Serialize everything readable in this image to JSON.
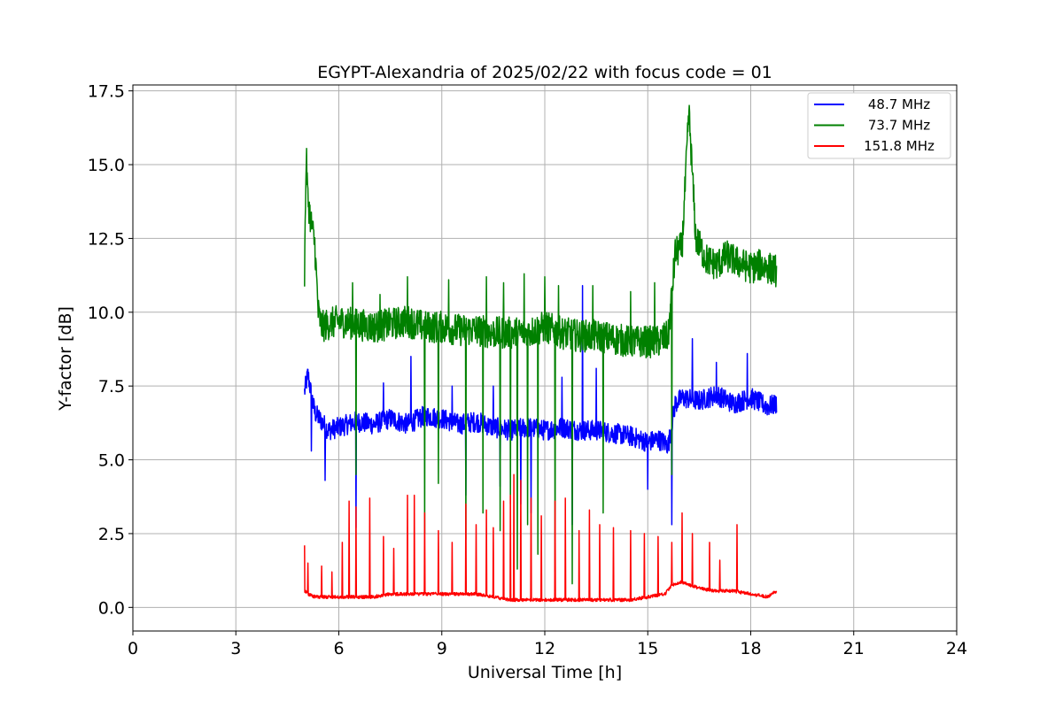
{
  "chart_data": {
    "type": "line",
    "title": "EGYPT-Alexandria of 2025/02/22 with focus code = 01",
    "xlabel": "Universal Time [h]",
    "ylabel": "Y-factor [dB]",
    "xlim": [
      0,
      24
    ],
    "ylim": [
      -0.8,
      17.7
    ],
    "xticks": [
      0,
      3,
      6,
      9,
      12,
      15,
      18,
      21,
      24
    ],
    "xtick_labels": [
      "0",
      "3",
      "6",
      "9",
      "12",
      "15",
      "18",
      "21",
      "24"
    ],
    "yticks": [
      0,
      2.5,
      5,
      7.5,
      10,
      12.5,
      15,
      17.5
    ],
    "ytick_labels": [
      "0.0",
      "2.5",
      "5.0",
      "7.5",
      "10.0",
      "12.5",
      "15.0",
      "17.5"
    ],
    "grid": true,
    "legend_position": "top-right",
    "series": [
      {
        "name": "48.7 MHz",
        "color": "#0000ff",
        "x": [
          5.0,
          5.1,
          5.2,
          5.3,
          5.5,
          5.7,
          6.0,
          6.5,
          7.0,
          7.5,
          8.0,
          8.5,
          9.0,
          9.5,
          10.0,
          10.5,
          11.0,
          11.5,
          12.0,
          12.5,
          13.0,
          13.5,
          14.0,
          14.5,
          15.0,
          15.3,
          15.6,
          15.8,
          16.0,
          16.5,
          17.0,
          17.5,
          18.0,
          18.5,
          18.75
        ],
        "values": [
          7.3,
          7.9,
          7.2,
          6.6,
          6.3,
          6.0,
          6.1,
          6.3,
          6.2,
          6.4,
          6.2,
          6.5,
          6.4,
          6.2,
          6.3,
          6.1,
          6.0,
          6.1,
          6.0,
          6.1,
          6.0,
          6.0,
          5.9,
          5.8,
          5.6,
          5.7,
          5.5,
          6.9,
          7.1,
          7.0,
          7.2,
          6.9,
          7.1,
          6.8,
          6.9
        ],
        "spikes_down": [
          [
            5.2,
            5.3
          ],
          [
            5.6,
            4.3
          ],
          [
            6.5,
            2.7
          ],
          [
            9.7,
            3.8
          ],
          [
            10.7,
            4.1
          ],
          [
            11.3,
            3.5
          ],
          [
            11.6,
            3.2
          ],
          [
            12.8,
            2.8
          ],
          [
            13.5,
            4.8
          ],
          [
            15.0,
            4.0
          ],
          [
            15.7,
            2.8
          ]
        ],
        "spikes_up": [
          [
            7.3,
            7.6
          ],
          [
            8.1,
            8.5
          ],
          [
            9.3,
            7.5
          ],
          [
            10.5,
            7.5
          ],
          [
            12.5,
            7.8
          ],
          [
            13.1,
            10.9
          ],
          [
            13.5,
            8.1
          ],
          [
            16.3,
            9.1
          ],
          [
            17.0,
            8.3
          ],
          [
            17.9,
            8.6
          ]
        ]
      },
      {
        "name": "73.7 MHz",
        "color": "#008000",
        "x": [
          5.0,
          5.05,
          5.1,
          5.2,
          5.3,
          5.4,
          5.5,
          5.7,
          6.0,
          6.5,
          7.0,
          7.5,
          8.0,
          8.5,
          9.0,
          9.5,
          10.0,
          10.5,
          11.0,
          11.5,
          12.0,
          12.5,
          13.0,
          13.5,
          14.0,
          14.5,
          15.0,
          15.3,
          15.6,
          15.8,
          16.0,
          16.2,
          16.4,
          16.7,
          17.0,
          17.3,
          17.6,
          18.0,
          18.3,
          18.75
        ],
        "values": [
          11.3,
          15.3,
          13.8,
          13.0,
          12.3,
          10.0,
          9.5,
          9.6,
          9.7,
          9.6,
          9.5,
          9.6,
          9.7,
          9.5,
          9.5,
          9.4,
          9.4,
          9.3,
          9.3,
          9.3,
          9.5,
          9.3,
          9.2,
          9.2,
          9.1,
          9.0,
          9.0,
          9.0,
          9.2,
          12.0,
          12.2,
          16.8,
          12.5,
          11.8,
          11.6,
          11.9,
          11.7,
          11.5,
          11.6,
          11.4
        ],
        "spikes_down": [
          [
            6.5,
            4.5
          ],
          [
            8.5,
            2.5
          ],
          [
            8.9,
            4.2
          ],
          [
            9.7,
            2.3
          ],
          [
            10.2,
            3.2
          ],
          [
            10.7,
            2.6
          ],
          [
            11.0,
            3.5
          ],
          [
            11.2,
            1.3
          ],
          [
            11.5,
            2.8
          ],
          [
            11.8,
            1.8
          ],
          [
            12.3,
            1.2
          ],
          [
            12.8,
            0.8
          ],
          [
            13.7,
            3.2
          ],
          [
            15.7,
            4.5
          ]
        ],
        "spikes_up": [
          [
            6.4,
            11.0
          ],
          [
            7.2,
            10.6
          ],
          [
            8.0,
            11.2
          ],
          [
            9.2,
            11.1
          ],
          [
            10.3,
            11.2
          ],
          [
            10.8,
            11.0
          ],
          [
            11.4,
            11.3
          ],
          [
            12.0,
            11.2
          ],
          [
            12.4,
            10.9
          ],
          [
            13.4,
            10.9
          ],
          [
            14.5,
            10.7
          ],
          [
            15.2,
            11.0
          ]
        ]
      },
      {
        "name": "151.8 MHz",
        "color": "#ff0000",
        "x": [
          5.0,
          5.1,
          5.3,
          5.6,
          6.0,
          6.5,
          7.0,
          7.5,
          8.0,
          8.5,
          9.0,
          9.5,
          10.0,
          10.5,
          11.0,
          11.5,
          12.0,
          12.5,
          13.0,
          13.5,
          14.0,
          14.5,
          15.0,
          15.5,
          15.7,
          16.0,
          16.5,
          17.0,
          17.5,
          18.0,
          18.5,
          18.75
        ],
        "values": [
          0.5,
          0.4,
          0.3,
          0.3,
          0.3,
          0.3,
          0.3,
          0.4,
          0.4,
          0.4,
          0.4,
          0.4,
          0.4,
          0.3,
          0.2,
          0.2,
          0.2,
          0.2,
          0.2,
          0.2,
          0.2,
          0.2,
          0.3,
          0.4,
          0.7,
          0.8,
          0.6,
          0.5,
          0.5,
          0.4,
          0.3,
          0.5
        ],
        "spikes_down": [],
        "spikes_up": [
          [
            5.0,
            2.1
          ],
          [
            5.1,
            1.5
          ],
          [
            5.5,
            1.4
          ],
          [
            5.8,
            1.2
          ],
          [
            6.1,
            2.2
          ],
          [
            6.3,
            3.6
          ],
          [
            6.5,
            3.4
          ],
          [
            6.9,
            3.7
          ],
          [
            7.3,
            2.4
          ],
          [
            7.6,
            2.0
          ],
          [
            8.0,
            3.8
          ],
          [
            8.2,
            3.8
          ],
          [
            8.5,
            3.2
          ],
          [
            8.9,
            2.6
          ],
          [
            9.3,
            2.2
          ],
          [
            9.7,
            3.5
          ],
          [
            10.0,
            2.8
          ],
          [
            10.3,
            3.3
          ],
          [
            10.5,
            2.7
          ],
          [
            10.8,
            3.6
          ],
          [
            11.0,
            3.8
          ],
          [
            11.1,
            4.5
          ],
          [
            11.3,
            4.3
          ],
          [
            11.6,
            3.7
          ],
          [
            11.9,
            3.1
          ],
          [
            12.3,
            3.6
          ],
          [
            12.6,
            3.7
          ],
          [
            13.0,
            2.6
          ],
          [
            13.3,
            3.3
          ],
          [
            13.6,
            2.8
          ],
          [
            14.0,
            2.7
          ],
          [
            14.5,
            2.6
          ],
          [
            14.9,
            2.5
          ],
          [
            15.3,
            2.4
          ],
          [
            15.7,
            2.2
          ],
          [
            16.0,
            3.2
          ],
          [
            16.3,
            2.5
          ],
          [
            16.8,
            2.2
          ],
          [
            17.1,
            1.6
          ],
          [
            17.6,
            2.8
          ]
        ]
      }
    ]
  }
}
